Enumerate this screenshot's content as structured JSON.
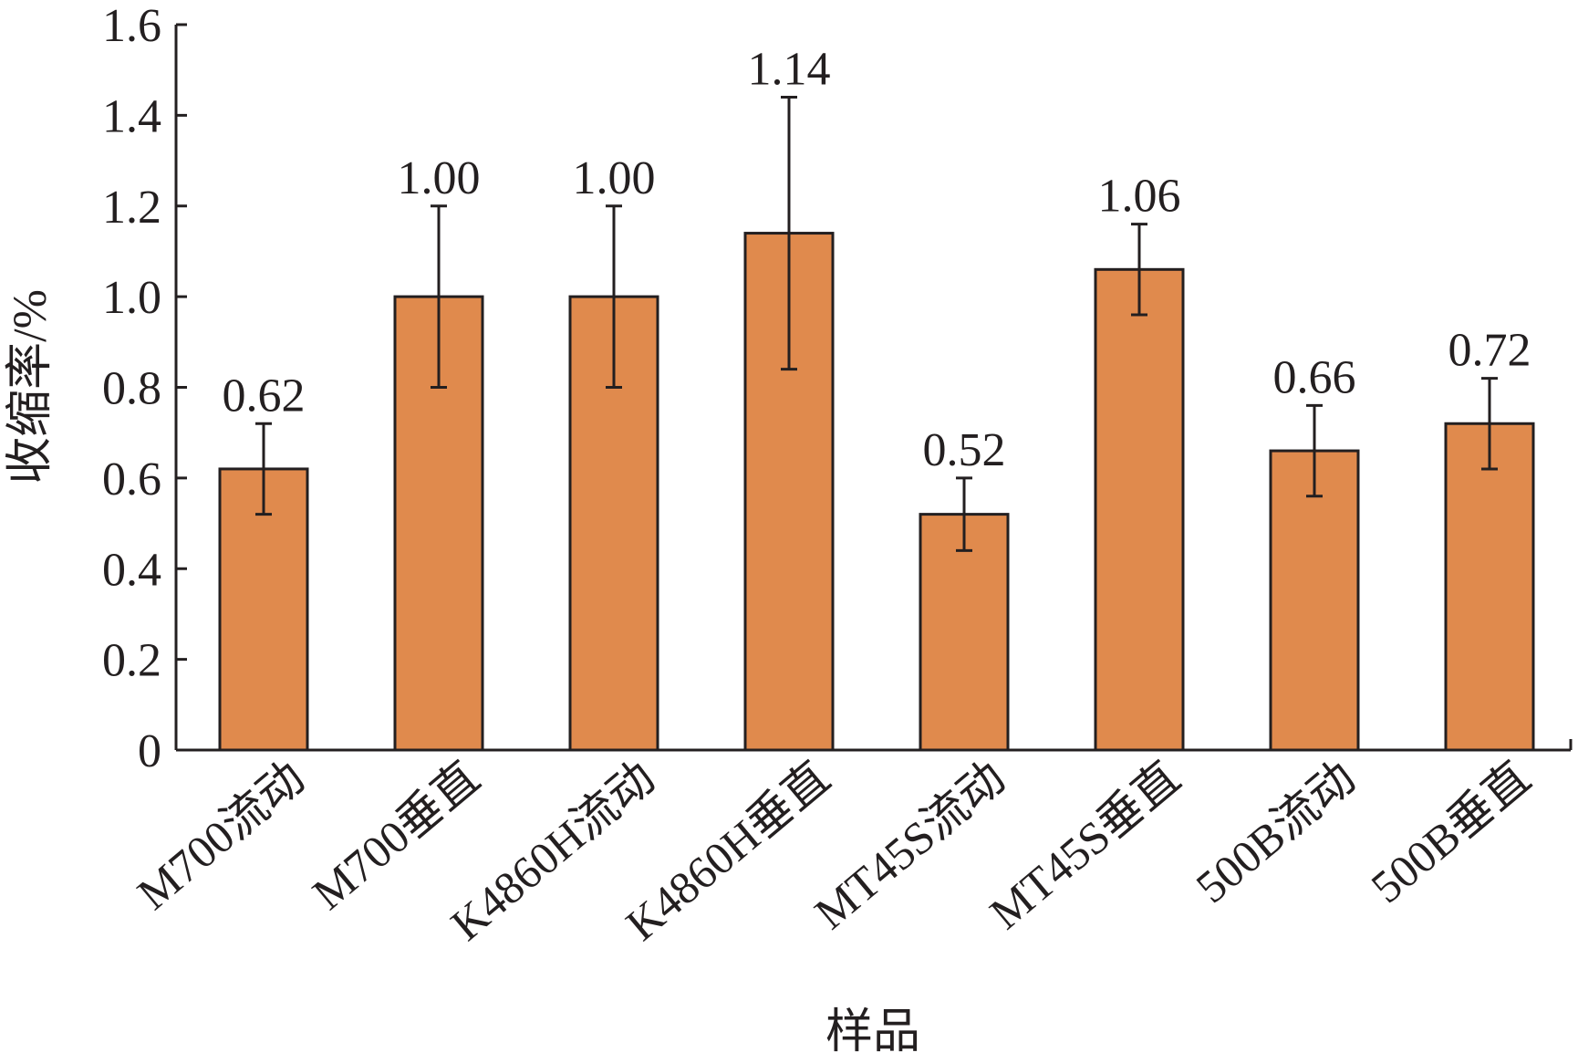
{
  "chart_data": {
    "type": "bar",
    "ylabel": "收缩率/%",
    "xlabel": "样品",
    "ylim": [
      0,
      1.6
    ],
    "yticks": [
      "0",
      "0.2",
      "0.4",
      "0.6",
      "0.8",
      "1.0",
      "1.2",
      "1.4",
      "1.6"
    ],
    "ytick_values": [
      0,
      0.2,
      0.4,
      0.6,
      0.8,
      1.0,
      1.2,
      1.4,
      1.6
    ],
    "categories": [
      "M700流动",
      "M700垂直",
      "K4860H流动",
      "K4860H垂直",
      "MT45S流动",
      "MT45S垂直",
      "500B流动",
      "500B垂直"
    ],
    "values": [
      0.62,
      1.0,
      1.0,
      1.14,
      0.52,
      1.06,
      0.66,
      0.72
    ],
    "value_labels": [
      "0.62",
      "1.00",
      "1.00",
      "1.14",
      "0.52",
      "1.06",
      "0.66",
      "0.72"
    ],
    "error_low": [
      0.52,
      0.8,
      0.8,
      0.84,
      0.44,
      0.96,
      0.56,
      0.62
    ],
    "error_high": [
      0.72,
      1.2,
      1.2,
      1.44,
      0.6,
      1.16,
      0.76,
      0.82
    ],
    "bar_color": "#e08a4d",
    "grid": false,
    "legend": "none"
  }
}
